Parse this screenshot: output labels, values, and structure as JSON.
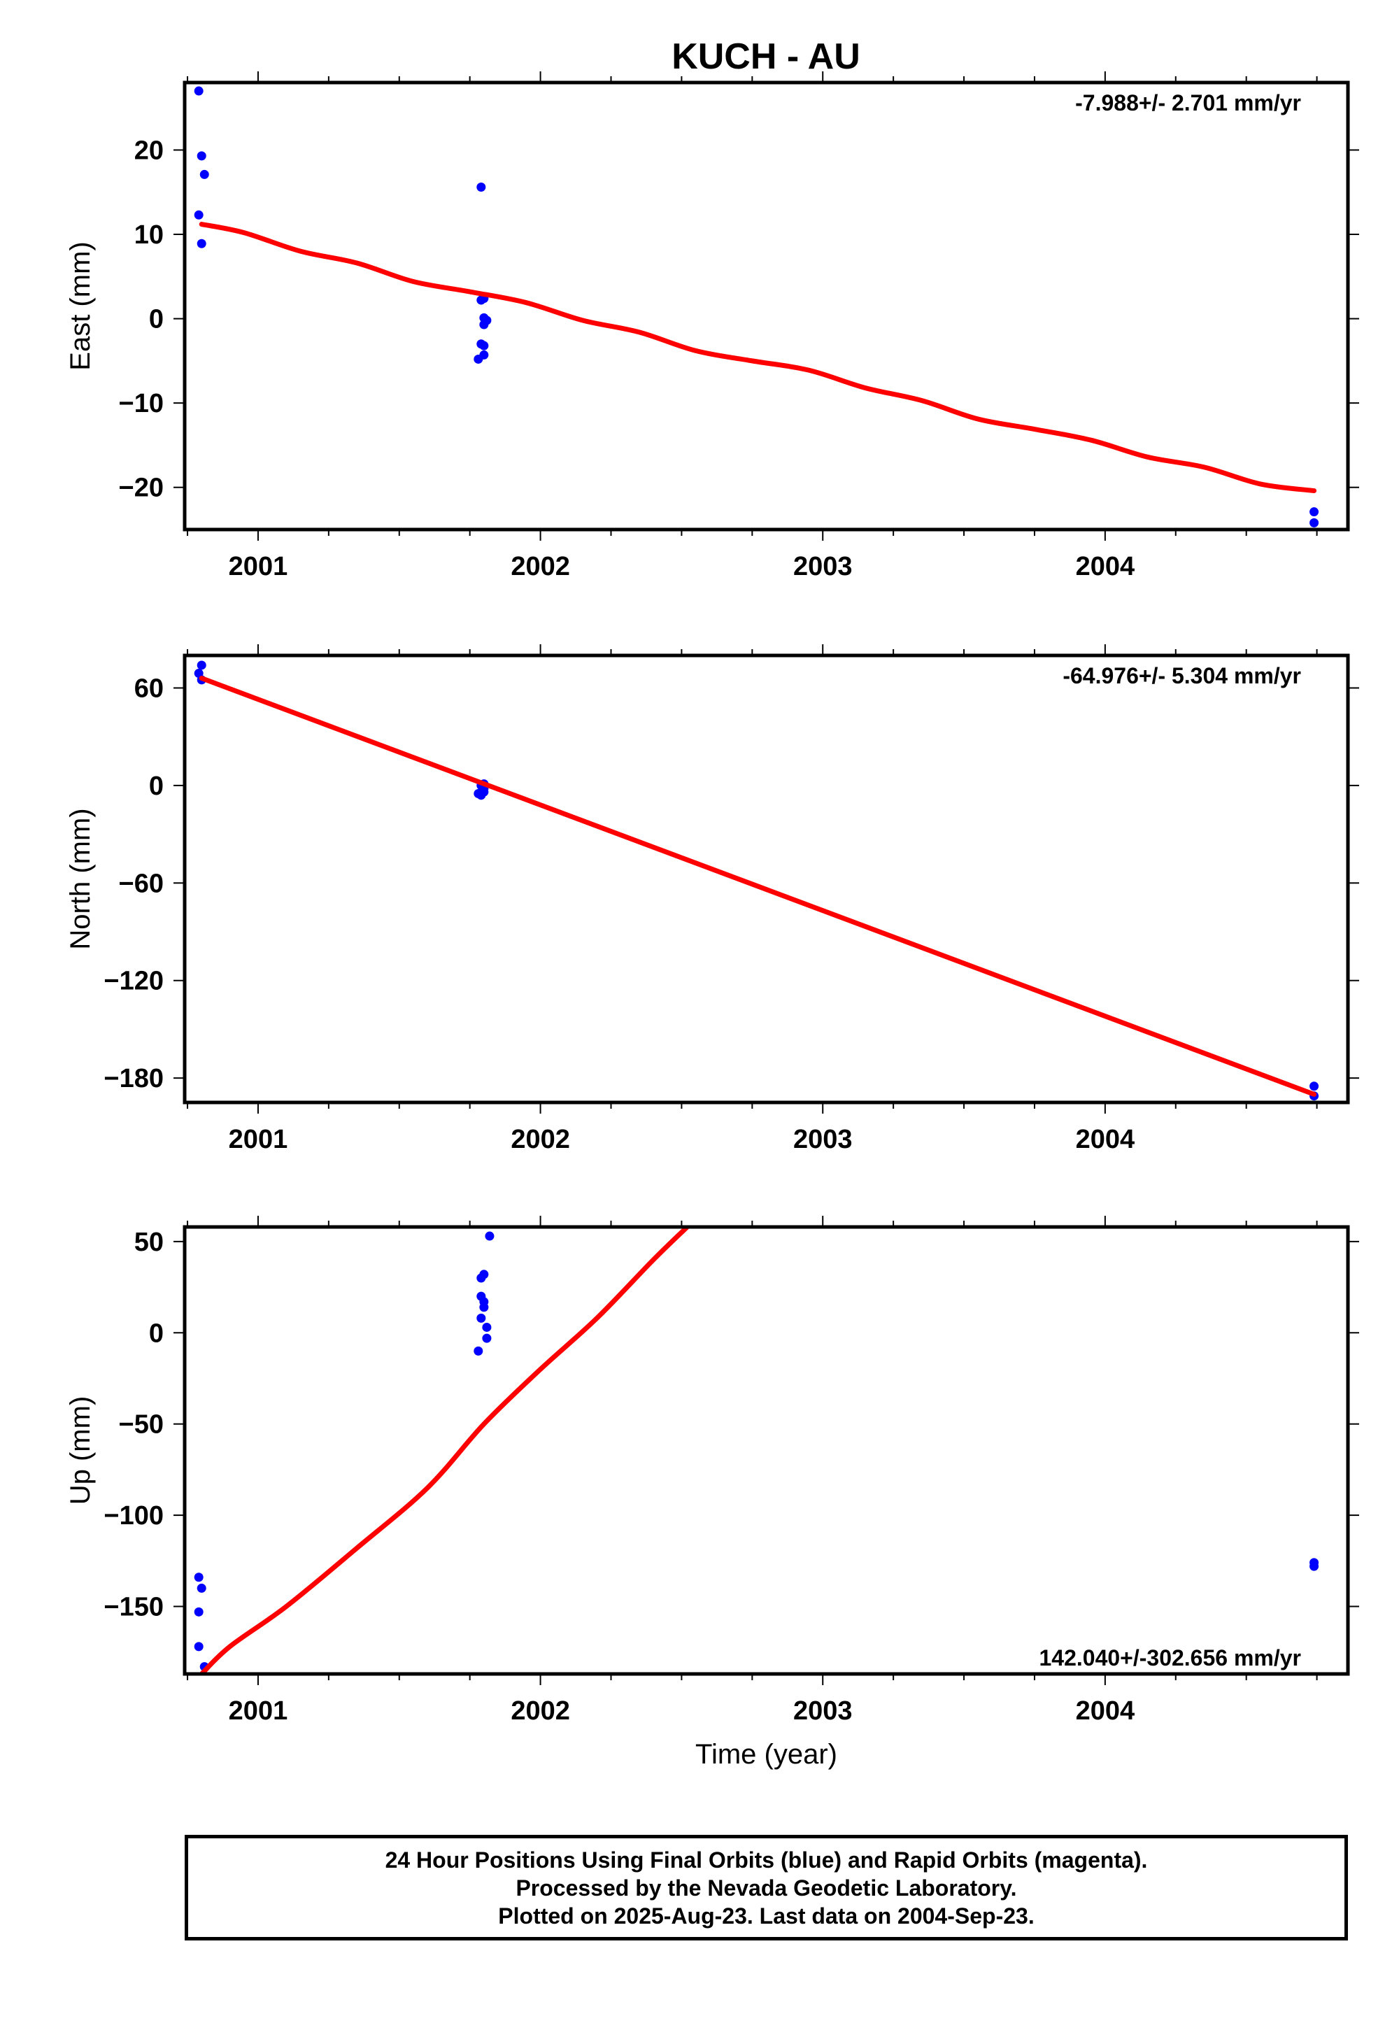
{
  "title": "KUCH - AU",
  "footer": {
    "line1": "24 Hour Positions Using Final Orbits (blue) and Rapid Orbits (magenta).",
    "line2": "Processed by the Nevada Geodetic Laboratory.",
    "line3": "Plotted on 2025-Aug-23. Last data on 2004-Sep-23."
  },
  "colors": {
    "data_points": "#0000ff",
    "trend_line": "#ff0000",
    "axes": "#000000"
  },
  "chart_data": [
    {
      "type": "scatter",
      "ylabel": "East (mm)",
      "xlabel": "",
      "rate_label": "-7.988+/- 2.701 mm/yr",
      "xlim": [
        2000.74,
        2004.86
      ],
      "ylim": [
        -25,
        28
      ],
      "x_ticks": [
        2001,
        2002,
        2003,
        2004
      ],
      "x_tick_labels": [
        "2001",
        "2002",
        "2003",
        "2004"
      ],
      "y_ticks": [
        -20,
        -10,
        0,
        10,
        20
      ],
      "y_tick_labels": [
        "−20",
        "−10",
        "0",
        "10",
        "20"
      ],
      "points": {
        "x": [
          2000.79,
          2000.8,
          2000.81,
          2000.79,
          2000.8,
          2001.79,
          2001.8,
          2001.79,
          2001.8,
          2001.81,
          2001.8,
          2001.79,
          2001.8,
          2001.8,
          2001.78,
          2004.74,
          2004.74
        ],
        "y": [
          27.0,
          19.3,
          17.1,
          12.3,
          8.9,
          15.6,
          2.4,
          2.2,
          0.1,
          -0.2,
          -0.7,
          -3.0,
          -3.2,
          -4.3,
          -4.8,
          -22.9,
          -24.2
        ]
      },
      "trend": {
        "x": [
          2000.8,
          2000.95,
          2001.15,
          2001.35,
          2001.55,
          2001.75,
          2001.95,
          2002.15,
          2002.35,
          2002.55,
          2002.75,
          2002.95,
          2003.15,
          2003.35,
          2003.55,
          2003.75,
          2003.95,
          2004.15,
          2004.35,
          2004.55,
          2004.74
        ],
        "y": [
          11.2,
          10.2,
          8.0,
          6.6,
          4.4,
          3.2,
          1.9,
          -0.2,
          -1.6,
          -3.8,
          -5.0,
          -6.1,
          -8.2,
          -9.7,
          -11.9,
          -13.1,
          -14.4,
          -16.4,
          -17.6,
          -19.6,
          -20.4
        ]
      }
    },
    {
      "type": "scatter",
      "ylabel": "North (mm)",
      "xlabel": "",
      "rate_label": "-64.976+/- 5.304 mm/yr",
      "xlim": [
        2000.74,
        2004.86
      ],
      "ylim": [
        -195,
        80
      ],
      "x_ticks": [
        2001,
        2002,
        2003,
        2004
      ],
      "x_tick_labels": [
        "2001",
        "2002",
        "2003",
        "2004"
      ],
      "y_ticks": [
        -180,
        -120,
        -60,
        0,
        60
      ],
      "y_tick_labels": [
        "−180",
        "−120",
        "−60",
        "0",
        "60"
      ],
      "points": {
        "x": [
          2000.8,
          2000.79,
          2000.8,
          2001.79,
          2001.8,
          2001.78,
          2001.79,
          2001.8,
          2001.8,
          2004.74,
          2004.74
        ],
        "y": [
          74,
          69,
          65,
          0,
          1,
          -5,
          -6,
          -4,
          -2,
          -185,
          -191
        ]
      },
      "trend": {
        "x": [
          2000.8,
          2004.74
        ],
        "y": [
          66,
          -190
        ]
      }
    },
    {
      "type": "scatter",
      "ylabel": "Up (mm)",
      "xlabel": "Time (year)",
      "rate_label": "142.040+/-302.656 mm/yr",
      "xlim": [
        2000.74,
        2004.86
      ],
      "ylim": [
        -187,
        58
      ],
      "x_ticks": [
        2001,
        2002,
        2003,
        2004
      ],
      "x_tick_labels": [
        "2001",
        "2002",
        "2003",
        "2004"
      ],
      "y_ticks": [
        -150,
        -100,
        -50,
        0,
        50
      ],
      "y_tick_labels": [
        "−150",
        "−100",
        "−50",
        "0",
        "50"
      ],
      "points": {
        "x": [
          2000.79,
          2000.8,
          2000.79,
          2000.79,
          2000.81,
          2001.82,
          2001.8,
          2001.79,
          2001.79,
          2001.8,
          2001.8,
          2001.79,
          2001.81,
          2001.81,
          2001.78,
          2004.74,
          2004.74
        ],
        "y": [
          -134,
          -140,
          -153,
          -172,
          -183,
          53,
          32,
          30,
          20,
          17,
          14,
          8,
          3,
          -3,
          -10,
          -126,
          -128
        ]
      },
      "trend": {
        "x": [
          2000.8,
          2000.9,
          2001.1,
          2001.35,
          2001.6,
          2001.8,
          2002.0,
          2002.2,
          2002.4,
          2002.52
        ],
        "y": [
          -187,
          -172,
          -150,
          -118,
          -85,
          -50,
          -20,
          8,
          40,
          58
        ]
      }
    }
  ]
}
